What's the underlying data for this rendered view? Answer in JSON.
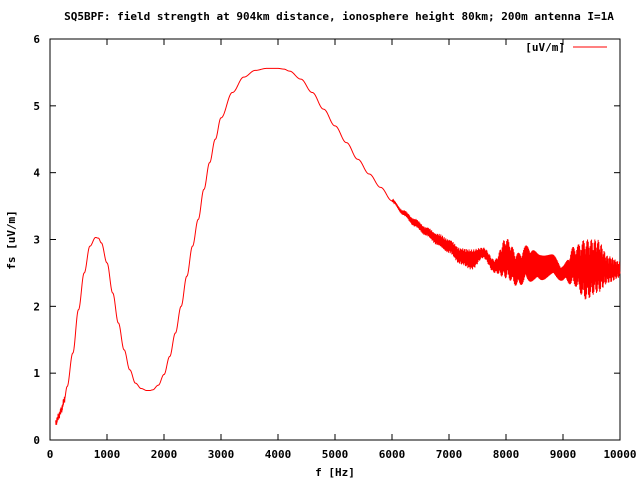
{
  "chart_data": {
    "type": "line",
    "title": "SQ5BPF: field strength at 904km distance, ionosphere height 80km; 200m antenna I=1A",
    "xlabel": "f [Hz]",
    "ylabel": "fs [uV/m]",
    "xlim": [
      0,
      10000
    ],
    "ylim": [
      0,
      6
    ],
    "x_ticks": [
      0,
      1000,
      2000,
      3000,
      4000,
      5000,
      6000,
      7000,
      8000,
      9000,
      10000
    ],
    "y_ticks": [
      0,
      1,
      2,
      3,
      4,
      5,
      6
    ],
    "grid": false,
    "legend_position": "top-right",
    "series": [
      {
        "name": "[uV/m]",
        "color": "#ff0000",
        "x": [
          100,
          150,
          200,
          250,
          300,
          400,
          500,
          600,
          700,
          800,
          850,
          900,
          1000,
          1100,
          1200,
          1300,
          1400,
          1500,
          1600,
          1700,
          1750,
          1800,
          1900,
          2000,
          2100,
          2200,
          2300,
          2400,
          2500,
          2600,
          2700,
          2800,
          2900,
          3000,
          3200,
          3400,
          3600,
          3800,
          4000,
          4100,
          4200,
          4400,
          4600,
          4800,
          5000,
          5200,
          5400,
          5600,
          5800,
          6000,
          6200,
          6400,
          6600,
          6800,
          7000,
          7200,
          7400,
          7600,
          7800,
          8000,
          8200,
          8400,
          8600,
          8800,
          9000,
          9200,
          9400,
          9600,
          9800,
          10000
        ],
        "y": [
          0.25,
          0.35,
          0.45,
          0.6,
          0.8,
          1.3,
          1.95,
          2.5,
          2.9,
          3.03,
          3.02,
          2.95,
          2.65,
          2.2,
          1.75,
          1.35,
          1.05,
          0.85,
          0.77,
          0.74,
          0.74,
          0.75,
          0.82,
          0.98,
          1.25,
          1.6,
          2.0,
          2.45,
          2.9,
          3.3,
          3.75,
          4.15,
          4.5,
          4.82,
          5.2,
          5.43,
          5.53,
          5.56,
          5.56,
          5.55,
          5.52,
          5.4,
          5.2,
          4.95,
          4.7,
          4.45,
          4.2,
          3.98,
          3.78,
          3.58,
          3.4,
          3.25,
          3.12,
          3.0,
          2.9,
          2.75,
          2.7,
          2.8,
          2.6,
          2.72,
          2.55,
          2.65,
          2.55,
          2.6,
          2.5,
          2.6,
          2.55,
          2.6,
          2.55,
          2.55
        ]
      }
    ],
    "oscillation_envelope": {
      "x": [
        6000,
        6500,
        7000,
        7200,
        7400,
        7600,
        7800,
        8000,
        8200,
        8400,
        8600,
        8800,
        9000,
        9200,
        9400,
        9600,
        9800,
        10000
      ],
      "amplitude": [
        0.02,
        0.06,
        0.1,
        0.12,
        0.15,
        0.08,
        0.1,
        0.3,
        0.25,
        0.28,
        0.22,
        0.18,
        0.12,
        0.3,
        0.45,
        0.4,
        0.2,
        0.12
      ]
    }
  }
}
